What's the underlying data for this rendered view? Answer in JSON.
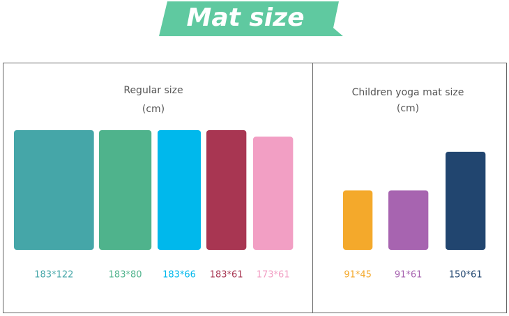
{
  "title": "Mat size",
  "sections": [
    {
      "title": "Regular size",
      "unit": "(cm)",
      "items": [
        {
          "label": "183*122",
          "length": 183,
          "width": 122,
          "color": "#45a6a8"
        },
        {
          "label": "183*80",
          "length": 183,
          "width": 80,
          "color": "#4fb38c"
        },
        {
          "label": "183*66",
          "length": 183,
          "width": 66,
          "color": "#00b8ec"
        },
        {
          "label": "183*61",
          "length": 183,
          "width": 61,
          "color": "#a83652"
        },
        {
          "label": "173*61",
          "length": 173,
          "width": 61,
          "color": "#f29fc4"
        }
      ]
    },
    {
      "title": "Children yoga mat size",
      "unit": "(cm)",
      "items": [
        {
          "label": "91*45",
          "length": 91,
          "width": 45,
          "color": "#f4a92b"
        },
        {
          "label": "91*61",
          "length": 91,
          "width": 61,
          "color": "#a764b0"
        },
        {
          "label": "150*61",
          "length": 150,
          "width": 61,
          "color": "#21456f"
        }
      ]
    }
  ]
}
